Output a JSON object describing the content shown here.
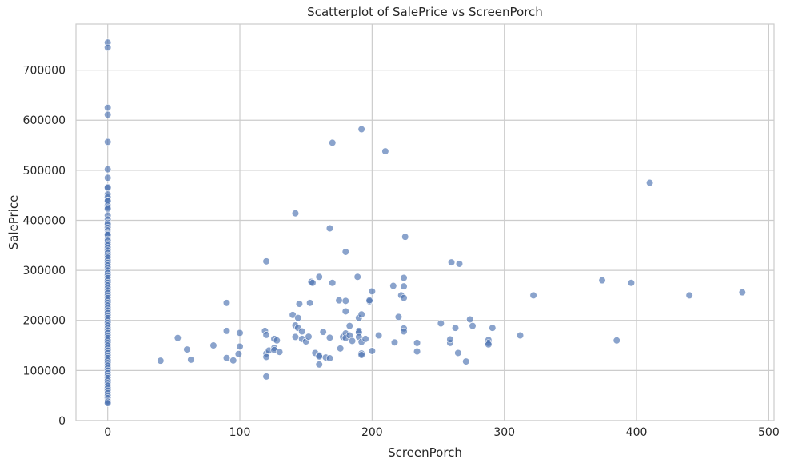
{
  "chart_data": {
    "type": "scatter",
    "title": "Scatterplot of SalePrice vs ScreenPorch",
    "xlabel": "ScreenPorch",
    "ylabel": "SalePrice",
    "xlim": [
      -24,
      504
    ],
    "ylim": [
      0,
      792000
    ],
    "xticks": [
      0,
      100,
      200,
      300,
      400,
      500
    ],
    "yticks": [
      0,
      100000,
      200000,
      300000,
      400000,
      500000,
      600000,
      700000
    ],
    "grid": true,
    "marker_color": "#4c72b0",
    "points": [
      [
        0,
        755000
      ],
      [
        0,
        745000
      ],
      [
        0,
        625000
      ],
      [
        0,
        611000
      ],
      [
        0,
        556581
      ],
      [
        0,
        501837
      ],
      [
        0,
        485000
      ],
      [
        0,
        466500
      ],
      [
        0,
        465000
      ],
      [
        0,
        451950
      ],
      [
        0,
        446261
      ],
      [
        0,
        440000
      ],
      [
        0,
        438780
      ],
      [
        0,
        430000
      ],
      [
        0,
        426000
      ],
      [
        0,
        423000
      ],
      [
        0,
        410000
      ],
      [
        0,
        402000
      ],
      [
        0,
        395192
      ],
      [
        0,
        392500
      ],
      [
        0,
        385000
      ],
      [
        0,
        380000
      ],
      [
        0,
        375000
      ],
      [
        0,
        372500
      ],
      [
        0,
        370878
      ],
      [
        0,
        361919
      ],
      [
        0,
        359100
      ],
      [
        0,
        354000
      ],
      [
        0,
        350000
      ],
      [
        0,
        345000
      ],
      [
        0,
        340000
      ],
      [
        0,
        335000
      ],
      [
        0,
        330000
      ],
      [
        0,
        325624
      ],
      [
        0,
        320000
      ],
      [
        0,
        315000
      ],
      [
        0,
        310000
      ],
      [
        0,
        305000
      ],
      [
        0,
        300000
      ],
      [
        0,
        295000
      ],
      [
        0,
        290000
      ],
      [
        0,
        285000
      ],
      [
        0,
        280000
      ],
      [
        0,
        275000
      ],
      [
        0,
        270000
      ],
      [
        0,
        265000
      ],
      [
        0,
        260000
      ],
      [
        0,
        255000
      ],
      [
        0,
        250000
      ],
      [
        0,
        245000
      ],
      [
        0,
        240000
      ],
      [
        0,
        235000
      ],
      [
        0,
        230000
      ],
      [
        0,
        225000
      ],
      [
        0,
        220000
      ],
      [
        0,
        215000
      ],
      [
        0,
        210000
      ],
      [
        0,
        205000
      ],
      [
        0,
        200000
      ],
      [
        0,
        195000
      ],
      [
        0,
        190000
      ],
      [
        0,
        185000
      ],
      [
        0,
        180000
      ],
      [
        0,
        175000
      ],
      [
        0,
        170000
      ],
      [
        0,
        165000
      ],
      [
        0,
        160000
      ],
      [
        0,
        155000
      ],
      [
        0,
        150000
      ],
      [
        0,
        145000
      ],
      [
        0,
        140000
      ],
      [
        0,
        135000
      ],
      [
        0,
        130000
      ],
      [
        0,
        125000
      ],
      [
        0,
        120000
      ],
      [
        0,
        115000
      ],
      [
        0,
        110000
      ],
      [
        0,
        105000
      ],
      [
        0,
        100000
      ],
      [
        0,
        95000
      ],
      [
        0,
        90000
      ],
      [
        0,
        85000
      ],
      [
        0,
        80000
      ],
      [
        0,
        75000
      ],
      [
        0,
        70000
      ],
      [
        0,
        65000
      ],
      [
        0,
        60000
      ],
      [
        0,
        55000
      ],
      [
        0,
        50000
      ],
      [
        0,
        45000
      ],
      [
        0,
        40000
      ],
      [
        0,
        37900
      ],
      [
        0,
        34900
      ],
      [
        40,
        119500
      ],
      [
        53,
        165000
      ],
      [
        60,
        142000
      ],
      [
        63,
        121500
      ],
      [
        80,
        150000
      ],
      [
        90,
        235000
      ],
      [
        90,
        179000
      ],
      [
        90,
        125000
      ],
      [
        95,
        120000
      ],
      [
        99,
        133000
      ],
      [
        100,
        175000
      ],
      [
        100,
        148000
      ],
      [
        119,
        179000
      ],
      [
        120,
        318000
      ],
      [
        120,
        171000
      ],
      [
        120,
        133900
      ],
      [
        120,
        127000
      ],
      [
        120,
        88000
      ],
      [
        122,
        140000
      ],
      [
        126,
        163000
      ],
      [
        126,
        145000
      ],
      [
        126,
        141000
      ],
      [
        128,
        160000
      ],
      [
        130,
        137000
      ],
      [
        140,
        211000
      ],
      [
        142,
        414000
      ],
      [
        142,
        190000
      ],
      [
        142,
        167000
      ],
      [
        144,
        205000
      ],
      [
        144,
        185000
      ],
      [
        145,
        233000
      ],
      [
        147,
        178000
      ],
      [
        147,
        163000
      ],
      [
        150,
        158000
      ],
      [
        152,
        167500
      ],
      [
        153,
        235000
      ],
      [
        154,
        277000
      ],
      [
        155,
        275000
      ],
      [
        157,
        135000
      ],
      [
        160,
        287000
      ],
      [
        160,
        130000
      ],
      [
        160,
        128000
      ],
      [
        160,
        112000
      ],
      [
        163,
        177000
      ],
      [
        165,
        126000
      ],
      [
        168,
        384000
      ],
      [
        168,
        165500
      ],
      [
        168,
        124500
      ],
      [
        170,
        555000
      ],
      [
        170,
        275000
      ],
      [
        175,
        240000
      ],
      [
        176,
        144000
      ],
      [
        178,
        167000
      ],
      [
        180,
        337000
      ],
      [
        180,
        239000
      ],
      [
        180,
        218000
      ],
      [
        180,
        174000
      ],
      [
        180,
        165000
      ],
      [
        183,
        189000
      ],
      [
        183,
        170000
      ],
      [
        185,
        159000
      ],
      [
        189,
        287000
      ],
      [
        190,
        205000
      ],
      [
        190,
        179000
      ],
      [
        190,
        176000
      ],
      [
        190,
        167000
      ],
      [
        192,
        582000
      ],
      [
        192,
        212000
      ],
      [
        192,
        157000
      ],
      [
        192,
        134000
      ],
      [
        192,
        131000
      ],
      [
        195,
        163000
      ],
      [
        198,
        238000
      ],
      [
        198,
        240000
      ],
      [
        200,
        258000
      ],
      [
        200,
        139000
      ],
      [
        205,
        170000
      ],
      [
        210,
        538000
      ],
      [
        216,
        269000
      ],
      [
        217,
        156000
      ],
      [
        220,
        207000
      ],
      [
        222,
        250000
      ],
      [
        224,
        285000
      ],
      [
        224,
        268000
      ],
      [
        224,
        245000
      ],
      [
        224,
        184000
      ],
      [
        224,
        178000
      ],
      [
        225,
        367000
      ],
      [
        234,
        155000
      ],
      [
        234,
        138000
      ],
      [
        252,
        194000
      ],
      [
        259,
        155000
      ],
      [
        259,
        162000
      ],
      [
        260,
        316000
      ],
      [
        263,
        185000
      ],
      [
        265,
        135000
      ],
      [
        266,
        313000
      ],
      [
        271,
        118000
      ],
      [
        274,
        202000
      ],
      [
        276,
        189000
      ],
      [
        288,
        161000
      ],
      [
        288,
        155000
      ],
      [
        288,
        152000
      ],
      [
        291,
        185000
      ],
      [
        312,
        170000
      ],
      [
        322,
        250000
      ],
      [
        374,
        280000
      ],
      [
        385,
        160000
      ],
      [
        396,
        275000
      ],
      [
        410,
        475000
      ],
      [
        440,
        250000
      ],
      [
        480,
        256000
      ]
    ]
  }
}
